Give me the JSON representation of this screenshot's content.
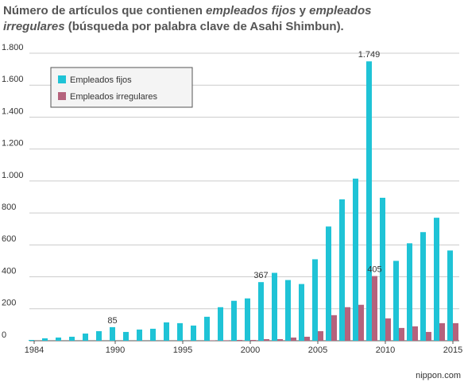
{
  "chart_data": {
    "type": "bar",
    "title_parts": [
      {
        "text": "Número de artículos que contienen ",
        "italic": false
      },
      {
        "text": "empleados fijos",
        "italic": true
      },
      {
        "text": " y ",
        "italic": false
      },
      {
        "text": "empleados",
        "italic": true
      },
      {
        "text": "irregulares",
        "italic": true,
        "newline": true
      },
      {
        "text": " (búsqueda por palabra clave de Asahi Shimbun).",
        "italic": false
      }
    ],
    "categories": [
      1984,
      null,
      null,
      null,
      null,
      null,
      1990,
      null,
      null,
      null,
      null,
      1995,
      null,
      null,
      null,
      null,
      2000,
      null,
      null,
      null,
      null,
      2005,
      null,
      null,
      null,
      null,
      2010,
      null,
      null,
      null,
      null,
      2015
    ],
    "series": [
      {
        "name": "Empleados fijos",
        "color": "#1fc3d6",
        "values": [
          5,
          15,
          20,
          25,
          45,
          60,
          85,
          55,
          70,
          75,
          115,
          110,
          95,
          150,
          210,
          250,
          265,
          367,
          425,
          380,
          355,
          510,
          715,
          885,
          1015,
          1749,
          895,
          500,
          610,
          680,
          770,
          565
        ],
        "value_labels": [
          null,
          null,
          null,
          null,
          null,
          null,
          "85",
          null,
          null,
          null,
          null,
          null,
          null,
          null,
          null,
          null,
          null,
          "367",
          null,
          null,
          null,
          null,
          null,
          null,
          null,
          "1.749",
          null,
          null,
          null,
          null,
          null,
          null
        ]
      },
      {
        "name": "Empleados irregulares",
        "color": "#b5627c",
        "values": [
          0,
          0,
          0,
          0,
          0,
          0,
          0,
          0,
          0,
          0,
          0,
          0,
          0,
          2,
          3,
          5,
          5,
          10,
          10,
          20,
          25,
          60,
          160,
          210,
          225,
          405,
          140,
          80,
          90,
          55,
          110,
          110
        ],
        "value_labels": [
          null,
          null,
          null,
          null,
          null,
          null,
          null,
          null,
          null,
          null,
          null,
          null,
          null,
          null,
          null,
          null,
          null,
          null,
          null,
          null,
          null,
          null,
          null,
          null,
          null,
          "405",
          null,
          null,
          null,
          null,
          null,
          null
        ]
      }
    ],
    "ylim": [
      0,
      1800
    ],
    "yticks": [
      0,
      200,
      400,
      600,
      800,
      {
        "value": 1000,
        "label": "1.000"
      },
      {
        "value": 1200,
        "label": "1.200"
      },
      {
        "value": 1400,
        "label": "1.400"
      },
      {
        "value": 1600,
        "label": "1.600"
      },
      {
        "value": 1800,
        "label": "1.800"
      }
    ],
    "grid": true,
    "legend": "upper left",
    "source": "nippon.com"
  }
}
